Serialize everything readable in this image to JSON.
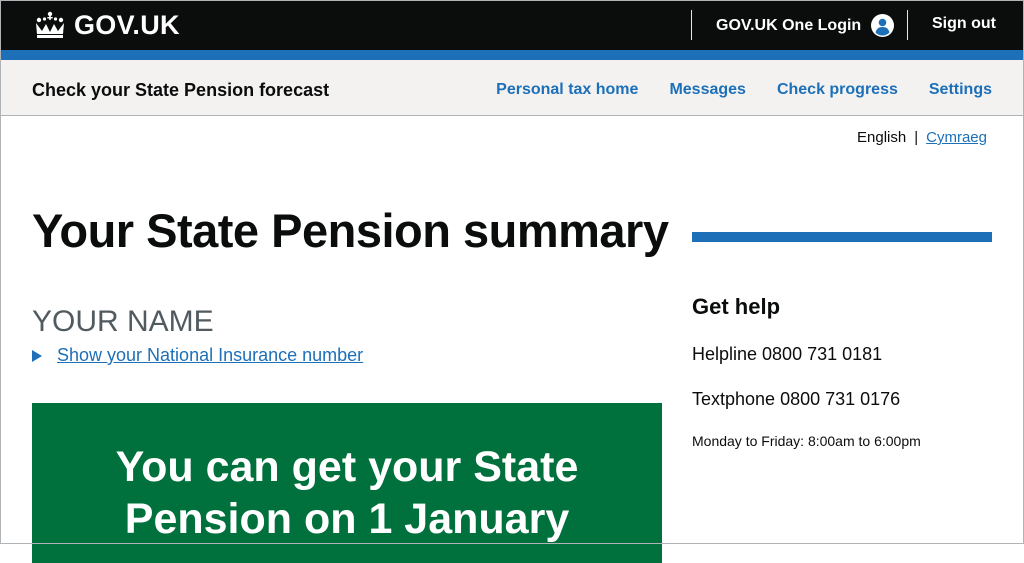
{
  "header": {
    "logo_text": "GOV.UK",
    "one_login_label": "GOV.UK One Login",
    "sign_out_label": "Sign out"
  },
  "service": {
    "name": "Check your State Pension forecast",
    "nav": [
      {
        "label": "Personal tax home"
      },
      {
        "label": "Messages"
      },
      {
        "label": "Check progress"
      },
      {
        "label": "Settings"
      }
    ]
  },
  "language": {
    "current": "English",
    "separator": "|",
    "alternate": "Cymraeg"
  },
  "main": {
    "title": "Your State Pension summary",
    "name_caption": "YOUR NAME",
    "ni_toggle_label": "Show your National Insurance number",
    "panel_title": "You can get your State Pension on 1 January"
  },
  "sidebar": {
    "heading": "Get help",
    "helpline": "Helpline 0800 731 0181",
    "textphone": "Textphone 0800 731 0176",
    "hours": "Monday to Friday: 8:00am to 6:00pm"
  },
  "colors": {
    "header_bg": "#0b0c0c",
    "brand_blue": "#1d70b8",
    "panel_green": "#00703c",
    "service_bg": "#f3f2f1"
  },
  "icons": {
    "logo": "crown-icon",
    "account": "person-icon",
    "toggle": "triangle-right-icon"
  }
}
